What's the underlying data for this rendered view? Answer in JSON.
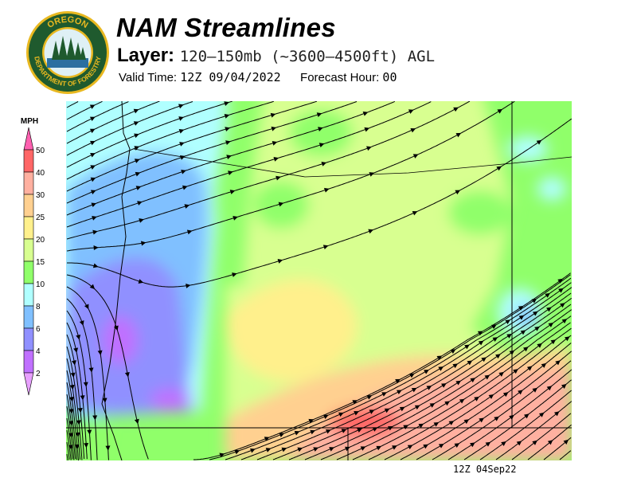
{
  "logo": {
    "text_top": "OREGON",
    "text_bottom": "DEPARTMENT OF FORESTRY"
  },
  "header": {
    "title": "NAM Streamlines",
    "layer_label": "Layer:",
    "layer_value": "120–150mb (~3600–4500ft) AGL",
    "valid_label": "Valid Time:",
    "valid_value": "12Z 09/04/2022",
    "forecast_label": "Forecast Hour:",
    "forecast_value": "00"
  },
  "legend": {
    "unit": "MPH",
    "ticks": [
      "50",
      "40",
      "30",
      "25",
      "20",
      "15",
      "10",
      "8",
      "6",
      "4",
      "2"
    ],
    "colors": {
      "above_50": "#ff60b0",
      "40-50": "#ff6666",
      "30-40": "#ffb0a0",
      "25-30": "#ffd090",
      "20-25": "#fff08c",
      "15-20": "#d8ff90",
      "10-15": "#90ff6a",
      "8-10": "#b0ffff",
      "6-8": "#80c0ff",
      "4-6": "#9090ff",
      "2-4": "#c070ff",
      "below_2": "#e8a0ff"
    }
  },
  "map": {
    "field": "wind streamlines",
    "streamline_color": "#000000"
  },
  "footer": {
    "stamp": "12Z 04Sep22"
  }
}
